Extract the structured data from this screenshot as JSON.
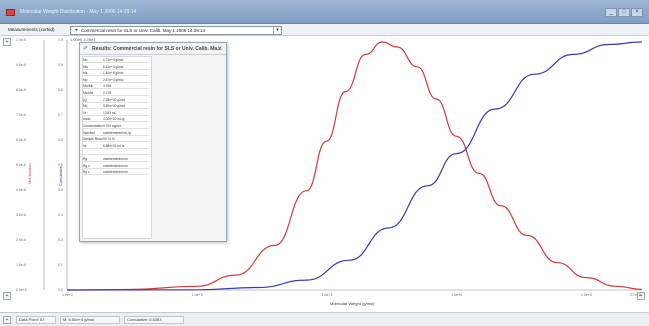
{
  "window": {
    "title": "Molecular Weight Distribution - May 1 2006 14:29:14",
    "buttons": [
      "_",
      "□",
      "×"
    ]
  },
  "toolbar": {
    "label": "Measurements (sorted)",
    "combo_value": "Commercial resin for SLS or Univ. Calib.  May 1 2006 14:29:14",
    "subvalue": "1.00e0 4.00e1"
  },
  "popup": {
    "title": "Results: Commercial resin for SLS or Univ. Calib.  Ma...",
    "rows": [
      {
        "key": "Mn",
        "value": "1.71e+4  g/mol"
      },
      {
        "key": "Mw",
        "value": "6.42e+4  g/mol"
      },
      {
        "key": "Mz",
        "value": "1.40e+5  g/mol"
      },
      {
        "key": "Mp",
        "value": "2.67e+4  g/mol"
      },
      {
        "key": "Mw/Mn",
        "value": "3.756"
      },
      {
        "key": "Mz/Mw",
        "value": "2.178"
      },
      {
        "key": "[η]",
        "value": "2.25e+00  g/mol"
      },
      {
        "key": "Mη",
        "value": "5.50e+00  g/mol"
      },
      {
        "key": "Vr",
        "value": "13.83  mL"
      },
      {
        "key": "dn/dc",
        "value": "4.00e+00  mL/g"
      },
      {
        "key": "Concentration",
        "value": "4.700  mg/mL"
      },
      {
        "key": "Injection",
        "value": "undetermined  mL/g"
      },
      {
        "key": "Sample Recovery",
        "value": "99.76  %"
      },
      {
        "key": "Inj",
        "value": "6.88e+01  mL/s"
      },
      {
        "key": "",
        "value": ""
      },
      {
        "key": "Rg",
        "value": "undetermined  nm"
      },
      {
        "key": "Rg n",
        "value": "undetermined  nm"
      },
      {
        "key": "Rg z",
        "value": "undetermined  nm"
      }
    ]
  },
  "axes": {
    "left_outer_title": "Mol fraction",
    "left_inner_title": "Cumulative",
    "x_title": "Molecular Weight (g/mol)",
    "left_outer_ticks": [
      "1.0e-5",
      "9.0e-6",
      "8.0e-6",
      "7.0e-6",
      "6.0e-6",
      "5.0e-6",
      "4.0e-6",
      "3.0e-6",
      "2.0e-6",
      "1.0e-6",
      "0.0e+0"
    ],
    "left_inner_ticks": [
      "1.0",
      "0.9",
      "0.8",
      "0.7",
      "0.6",
      "0.5",
      "0.4",
      "0.3",
      "0.2",
      "0.1",
      "0.0"
    ],
    "x_ticks": [
      "1.0e+2",
      "1.0e+3",
      "1.0e+4",
      "1.0e+5",
      "1.0e+6",
      "2.7e+6"
    ],
    "corner_top_left": "+",
    "corner_bottom_left": "+",
    "corner_bottom_right": "+"
  },
  "chart_data": {
    "type": "line",
    "x_scale": "log",
    "xlim": [
      100,
      2700000
    ],
    "xlabel": "Molecular Weight (g/mol)",
    "series": [
      {
        "color": "#d23a3a",
        "x": [
          100,
          300,
          1000,
          2000,
          4000,
          7000,
          10000,
          14000,
          20000,
          27000,
          35000,
          50000,
          70000,
          100000,
          150000,
          220000,
          350000,
          600000,
          1000000,
          1700000,
          2700000
        ],
        "y": [
          0.0,
          0.002,
          0.015,
          0.06,
          0.18,
          0.4,
          0.6,
          0.8,
          0.95,
          1.0,
          0.98,
          0.9,
          0.77,
          0.62,
          0.47,
          0.34,
          0.22,
          0.11,
          0.05,
          0.015,
          0.003
        ]
      },
      {
        "color": "#3a3ab8",
        "x": [
          100,
          1000,
          3000,
          7000,
          15000,
          30000,
          60000,
          100000,
          200000,
          400000,
          800000,
          1500000,
          2700000
        ],
        "y": [
          0.0,
          0.001,
          0.01,
          0.04,
          0.12,
          0.25,
          0.42,
          0.55,
          0.73,
          0.87,
          0.95,
          0.99,
          1.0
        ]
      }
    ]
  },
  "status": {
    "datapoint": "Data Point: 57",
    "mw": "M: 6.50e+4 g/mol",
    "cumulative": "Cumulative: 0.6353"
  }
}
